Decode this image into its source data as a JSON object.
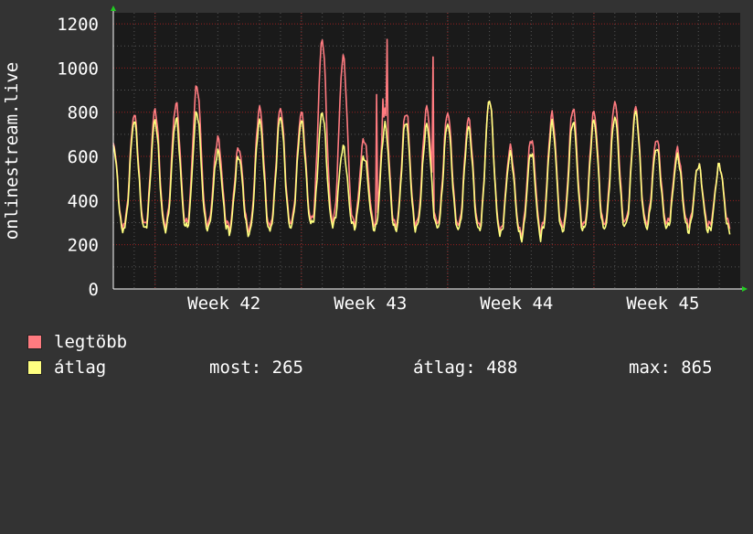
{
  "chart_data": {
    "type": "line",
    "ylabel": "onlinestream.live",
    "ylim": [
      0,
      1250
    ],
    "yticks": [
      0,
      200,
      400,
      600,
      800,
      1000,
      1200
    ],
    "xlim": [
      0,
      30
    ],
    "xticks": [
      {
        "label": "Week 42",
        "x": 5.3
      },
      {
        "label": "Week 43",
        "x": 12.3
      },
      {
        "label": "Week 44",
        "x": 19.3
      },
      {
        "label": "Week 45",
        "x": 26.3
      }
    ],
    "grid": true,
    "series": [
      {
        "name": "legtöbb",
        "color": "#ff7b80",
        "daily_peaks": [
          660,
          790,
          810,
          840,
          920,
          680,
          640,
          820,
          820,
          800,
          1130,
          1050,
          680,
          800,
          800,
          820,
          800,
          770,
          860,
          640,
          680,
          790,
          820,
          800,
          850,
          820,
          680,
          630,
          560
        ],
        "daily_lows": [
          270,
          300,
          290,
          300,
          300,
          290,
          270,
          280,
          300,
          310,
          320,
          310,
          300,
          290,
          290,
          300,
          300,
          290,
          290,
          260,
          250,
          280,
          290,
          290,
          300,
          310,
          300,
          300,
          290
        ],
        "spikes": [
          {
            "x": 13.1,
            "y": 1130
          },
          {
            "x": 15.3,
            "y": 1050
          },
          {
            "x": 12.6,
            "y": 880
          },
          {
            "x": 12.9,
            "y": 860
          },
          {
            "x": 14.1,
            "y": 780
          }
        ]
      },
      {
        "name": "átlag",
        "color": "#ffff80",
        "daily_peaks": [
          650,
          760,
          760,
          770,
          800,
          620,
          600,
          760,
          780,
          760,
          800,
          640,
          600,
          740,
          760,
          740,
          750,
          730,
          860,
          610,
          620,
          750,
          760,
          760,
          780,
          800,
          640,
          600,
          560
        ],
        "daily_lows": [
          255,
          280,
          270,
          280,
          280,
          270,
          250,
          260,
          280,
          290,
          300,
          290,
          280,
          270,
          270,
          280,
          280,
          270,
          270,
          245,
          230,
          260,
          270,
          270,
          280,
          290,
          280,
          280,
          265
        ]
      }
    ]
  },
  "legend": {
    "max_label": "legtöbb",
    "avg_label": "átlag",
    "stat_now": "most: 265",
    "stat_avg": "átlag: 488",
    "stat_max": "max: 865"
  },
  "colors": {
    "background": "#333333",
    "plot_background": "#1a1a1a",
    "major_grid": "#cc2222",
    "minor_grid": "#555555",
    "axis_arrow": "#22cc22"
  }
}
